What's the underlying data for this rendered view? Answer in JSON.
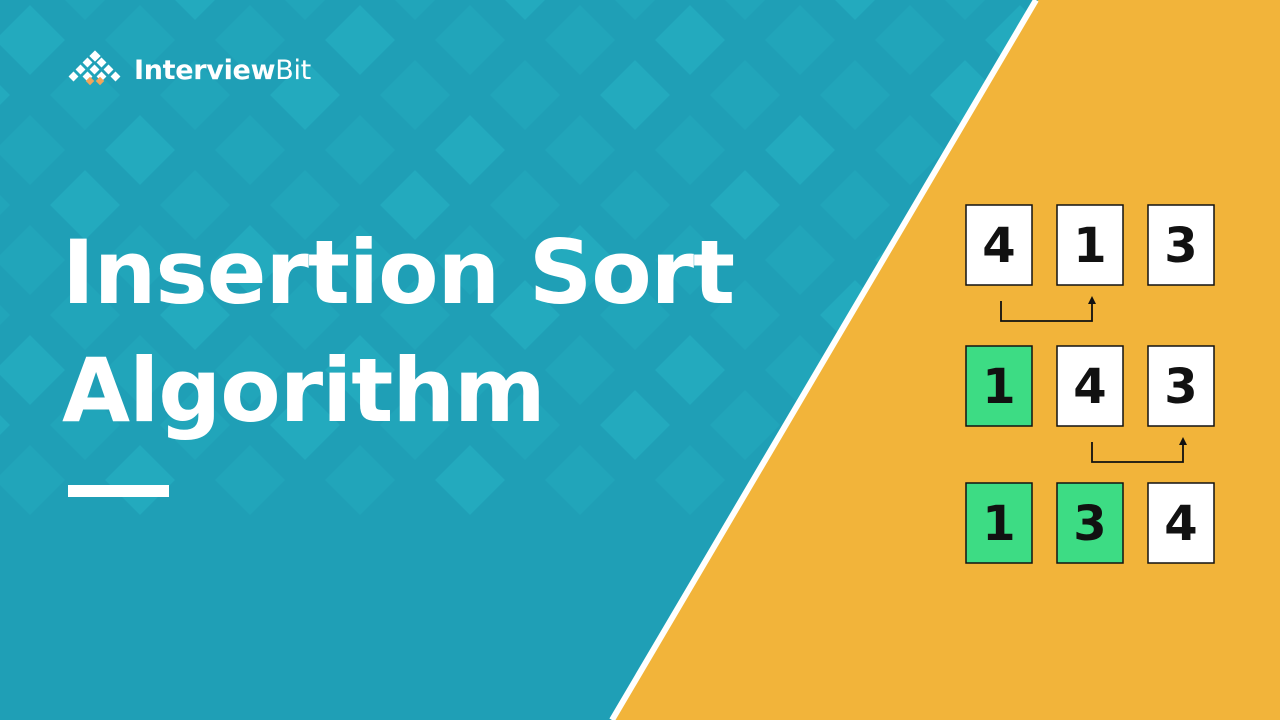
{
  "brand": {
    "name_bold": "Interview",
    "name_regular": "Bit"
  },
  "title": {
    "line1": "Insertion Sort",
    "line2": "Algorithm"
  },
  "colors": {
    "background_teal": "#1f9fb6",
    "tile_teal": "#27b3c4",
    "panel_yellow": "#f2b43a",
    "sorted_green": "#3ddc84",
    "card_white": "#ffffff",
    "digit_black": "#111111"
  },
  "diagram": {
    "rows": [
      {
        "cells": [
          {
            "value": "4",
            "sorted": false
          },
          {
            "value": "1",
            "sorted": false
          },
          {
            "value": "3",
            "sorted": false
          }
        ],
        "swap": [
          0,
          1
        ]
      },
      {
        "cells": [
          {
            "value": "1",
            "sorted": true
          },
          {
            "value": "4",
            "sorted": false
          },
          {
            "value": "3",
            "sorted": false
          }
        ],
        "swap": [
          1,
          2
        ]
      },
      {
        "cells": [
          {
            "value": "1",
            "sorted": true
          },
          {
            "value": "3",
            "sorted": true
          },
          {
            "value": "4",
            "sorted": false
          }
        ],
        "swap": null
      }
    ]
  }
}
